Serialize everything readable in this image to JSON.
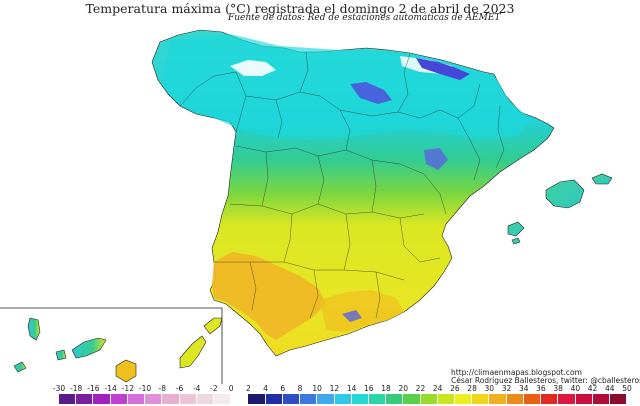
{
  "map": {
    "title": "Temperatura máxima (°C) registrada el domingo 2 de abril de 2023",
    "subtitle": "Fuente de datos: Red de estaciones automáticas de AEMET",
    "credits": {
      "url": "http://climaenmapas.blogspot.com",
      "author": "César Rodríguez Ballesteros, twitter: @cballesteros"
    },
    "colors": {
      "north_cyan": "#22d4d4",
      "central_green": "#33cc88",
      "south_yellow": "#dde622",
      "valley_orange": "#f0b020",
      "mountain_blue": "#4646d8",
      "white_peaks": "#ffffff"
    }
  },
  "legend": {
    "ticks": [
      "-30",
      "-18",
      "-16",
      "-14",
      "-12",
      "-10",
      "-8",
      "-6",
      "-4",
      "-2",
      "0",
      "2",
      "4",
      "6",
      "8",
      "10",
      "12",
      "14",
      "16",
      "18",
      "20",
      "22",
      "24",
      "26",
      "28",
      "30",
      "32",
      "34",
      "36",
      "38",
      "40",
      "42",
      "44",
      "50"
    ],
    "colors": [
      "#5a1a8c",
      "#7a1fa0",
      "#a020c0",
      "#c040d0",
      "#d070d8",
      "#e090d8",
      "#e8b0d0",
      "#ecc6d4",
      "#efd8dd",
      "#f4eaec",
      "#ffffff",
      "#1a1a6e",
      "#1f2fa8",
      "#2e4ec8",
      "#3a7ae0",
      "#40a8ec",
      "#30c8e8",
      "#22d8d4",
      "#28d6a8",
      "#34cc7a",
      "#58d048",
      "#98dc2a",
      "#c8e620",
      "#ecee1e",
      "#f2d61c",
      "#f0b020",
      "#ee8a18",
      "#ea6012",
      "#e42a20",
      "#e01640",
      "#c8103e",
      "#b00e38",
      "#8c0c2e"
    ]
  }
}
